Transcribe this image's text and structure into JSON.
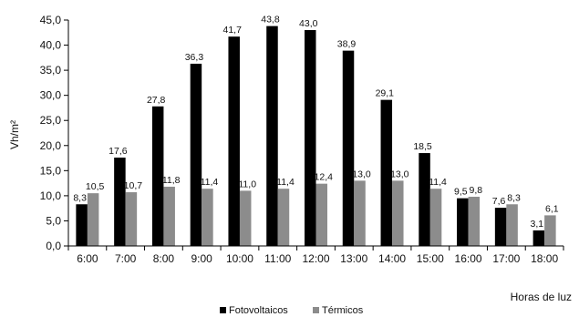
{
  "chart_data": {
    "type": "bar",
    "ylabel": "Vh/m²",
    "xlabel": "Horas de luz",
    "ylim": [
      0,
      45
    ],
    "ytick_step": 5,
    "ytick_labels": [
      "0,0",
      "5,0",
      "10,0",
      "15,0",
      "20,0",
      "25,0",
      "30,0",
      "35,0",
      "40,0",
      "45,0"
    ],
    "grid": false,
    "legend_position": "bottom",
    "categories": [
      "6:00",
      "7:00",
      "8:00",
      "9:00",
      "10:00",
      "11:00",
      "12:00",
      "13:00",
      "14:00",
      "15:00",
      "16:00",
      "17:00",
      "18:00"
    ],
    "series": [
      {
        "name": "Fotovoltaicos",
        "color": "#000000",
        "values": [
          8.3,
          17.6,
          27.8,
          36.3,
          41.7,
          43.8,
          43.0,
          38.9,
          29.1,
          18.5,
          9.5,
          7.6,
          3.1
        ],
        "labels": [
          "8,3",
          "17,6",
          "27,8",
          "36,3",
          "41,7",
          "43,8",
          "43,0",
          "38,9",
          "29,1",
          "18,5",
          "9,5",
          "7,6",
          "3,1"
        ]
      },
      {
        "name": "Térmicos",
        "color": "#8c8c8c",
        "values": [
          10.5,
          10.7,
          11.8,
          11.4,
          11.0,
          11.4,
          12.4,
          13.0,
          13.0,
          11.4,
          9.8,
          8.3,
          6.1
        ],
        "labels": [
          "10,5",
          "10,7",
          "11,8",
          "11,4",
          "11,0",
          "11,4",
          "12,4",
          "13,0",
          "13,0",
          "11,4",
          "9,8",
          "8,3",
          "6,1"
        ]
      }
    ]
  }
}
